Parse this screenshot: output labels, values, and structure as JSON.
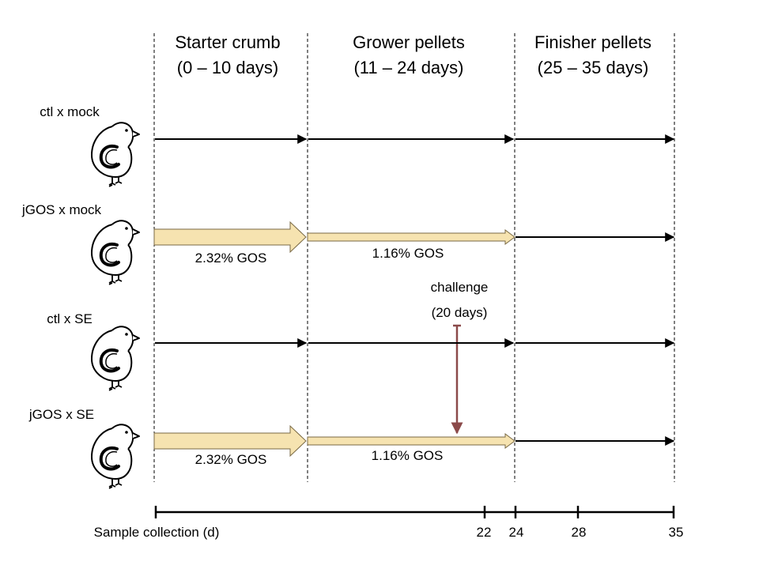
{
  "phases": [
    {
      "name": "Starter crumb",
      "period": "(0 – 10 days)"
    },
    {
      "name": "Grower pellets",
      "period": "(11 – 24 days)"
    },
    {
      "name": "Finisher pellets",
      "period": "(25 – 35 days)"
    }
  ],
  "groups": [
    {
      "label": "ctl x mock"
    },
    {
      "label": "jGOS x mock",
      "starter_dose": "2.32% GOS",
      "grower_dose": "1.16% GOS"
    },
    {
      "label": "ctl x SE"
    },
    {
      "label": "jGOS x SE",
      "starter_dose": "2.32% GOS",
      "grower_dose": "1.16% GOS"
    }
  ],
  "challenge": {
    "label": "challenge",
    "day": "(20 days)"
  },
  "sample_collection": {
    "title": "Sample collection (d)",
    "days": [
      "22",
      "24",
      "28",
      "35"
    ]
  },
  "colors": {
    "arrow_fill": "#f6e3b0",
    "arrow_stroke": "#7a6a45",
    "challenge_arrow": "#8b4a4a",
    "line": "#000000"
  }
}
